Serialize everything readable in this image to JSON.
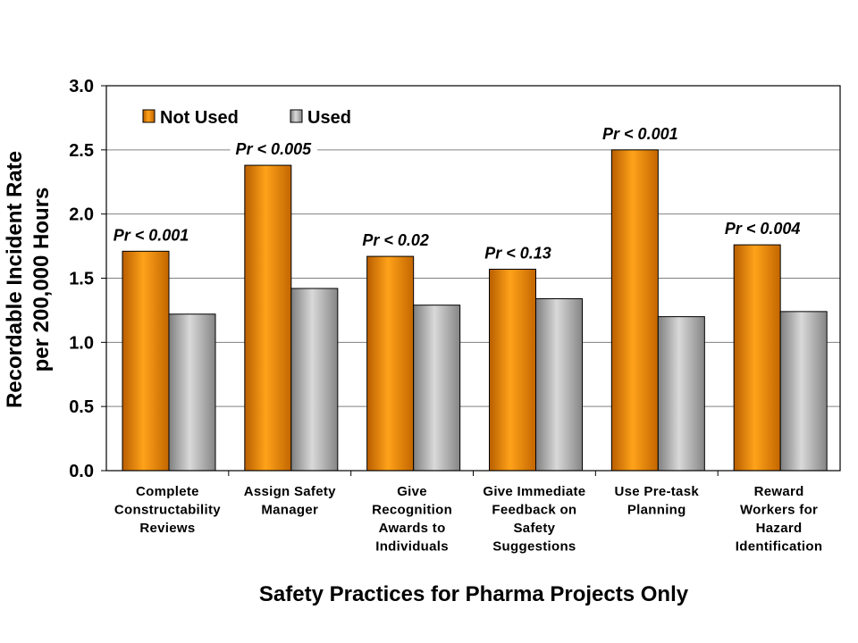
{
  "chart_data": {
    "type": "bar",
    "xlabel": "Safety Practices for Pharma Projects Only",
    "ylabel_lines": [
      "Recordable Incident Rate",
      "per 200,000 Hours"
    ],
    "ylim": [
      0,
      3.0
    ],
    "yticks": [
      "0.0",
      "0.5",
      "1.0",
      "1.5",
      "2.0",
      "2.5",
      "3.0"
    ],
    "grid": true,
    "legend_position": "top-left",
    "categories": [
      [
        "Complete",
        "Constructability",
        "Reviews"
      ],
      [
        "Assign Safety",
        "Manager"
      ],
      [
        "Give",
        "Recognition",
        "Awards to",
        "Individuals"
      ],
      [
        "Give Immediate",
        "Feedback on",
        "Safety",
        "Suggestions"
      ],
      [
        "Use Pre-task",
        "Planning"
      ],
      [
        "Reward",
        "Workers for",
        "Hazard",
        "Identification"
      ]
    ],
    "series": [
      {
        "name": "Not Used",
        "color": "#F28C00",
        "values": [
          1.71,
          2.38,
          1.67,
          1.57,
          2.5,
          1.76
        ]
      },
      {
        "name": "Used",
        "color": "#A6A6A6",
        "values": [
          1.22,
          1.42,
          1.29,
          1.34,
          1.2,
          1.24
        ]
      }
    ],
    "annotations": [
      "Pr < 0.001",
      "Pr < 0.005",
      "Pr < 0.02",
      "Pr < 0.13",
      "Pr < 0.001",
      "Pr < 0.004"
    ]
  }
}
